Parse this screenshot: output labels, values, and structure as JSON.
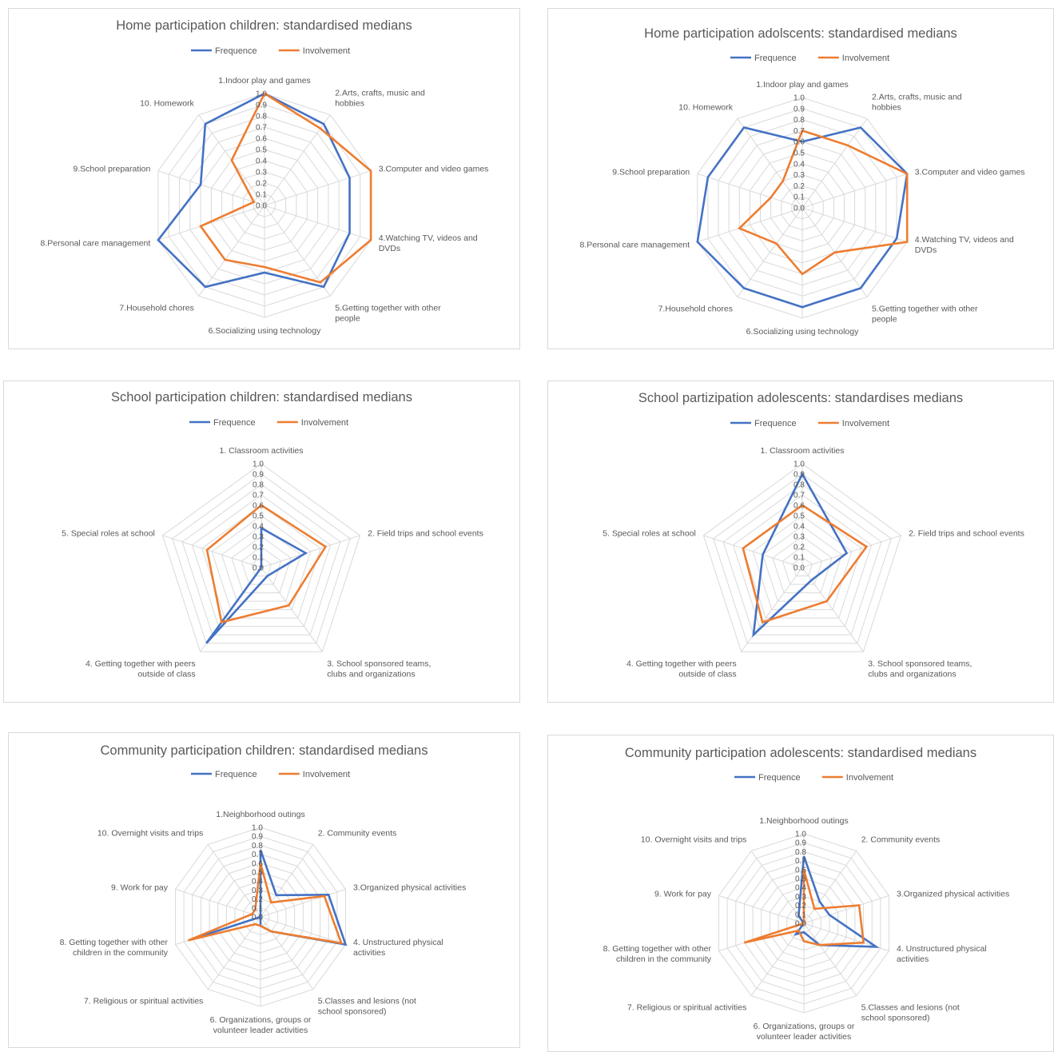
{
  "colors": {
    "frequence": "#4472C4",
    "involvement": "#ED7D31",
    "grid": "#d9d9d9",
    "text": "#595959"
  },
  "chart_data": [
    {
      "type": "radar",
      "title": "Home participation children: standardised medians",
      "legend": {
        "position": "top"
      },
      "rlim": [
        0,
        1
      ],
      "ticks": [
        "0.0",
        "0.1",
        "0.2",
        "0.3",
        "0.4",
        "0.5",
        "0.6",
        "0.7",
        "0.8",
        "0.9",
        "1.0"
      ],
      "categories": [
        [
          "1.Indoor play and games"
        ],
        [
          "2.Arts, crafts, music and",
          "hobbies"
        ],
        [
          "3.Computer and video games"
        ],
        [
          "4.Watching TV, videos and",
          "DVDs"
        ],
        [
          "5.Getting together with other",
          "people"
        ],
        [
          "6.Socializing using technology"
        ],
        [
          "7.Household chores"
        ],
        [
          "8.Personal care management"
        ],
        [
          "9.School preparation"
        ],
        [
          "10. Homework"
        ]
      ],
      "series": [
        {
          "name": "Frequence",
          "values": [
            1.0,
            0.9,
            0.8,
            0.8,
            0.9,
            0.6,
            0.9,
            1.0,
            0.6,
            0.9
          ]
        },
        {
          "name": "Involvement",
          "values": [
            1.0,
            0.85,
            1.0,
            1.0,
            0.85,
            0.55,
            0.6,
            0.6,
            0.1,
            0.5
          ]
        }
      ]
    },
    {
      "type": "radar",
      "title": "Home participation adolscents: standardised medians",
      "legend": {
        "position": "top"
      },
      "rlim": [
        0,
        1
      ],
      "ticks": [
        "0.0",
        "0.1",
        "0.2",
        "0.3",
        "0.4",
        "0.5",
        "0.6",
        "0.7",
        "0.8",
        "0.9",
        "1.0"
      ],
      "categories": [
        [
          "1.Indoor play and games"
        ],
        [
          "2.Arts, crafts, music and",
          "hobbies"
        ],
        [
          "3.Computer and video games"
        ],
        [
          "4.Watching TV, videos and",
          "DVDs"
        ],
        [
          "5.Getting together with other",
          "people"
        ],
        [
          "6.Socializing using technology"
        ],
        [
          "7.Household chores"
        ],
        [
          "8.Personal care management"
        ],
        [
          "9.School preparation"
        ],
        [
          "10. Homework"
        ]
      ],
      "series": [
        {
          "name": "Frequence",
          "values": [
            0.6,
            0.9,
            1.0,
            0.9,
            0.9,
            0.9,
            0.9,
            1.0,
            0.9,
            0.9
          ]
        },
        {
          "name": "Involvement",
          "values": [
            0.7,
            0.7,
            1.0,
            1.0,
            0.5,
            0.6,
            0.4,
            0.6,
            0.3,
            0.3
          ]
        }
      ]
    },
    {
      "type": "radar",
      "title": "School participation children: standardised medians",
      "legend": {
        "position": "top"
      },
      "rlim": [
        0,
        1
      ],
      "ticks": [
        "0.0",
        "0.1",
        "0.2",
        "0.3",
        "0.4",
        "0.5",
        "0.6",
        "0.7",
        "0.8",
        "0.9",
        "1.0"
      ],
      "categories": [
        [
          "1. Classroom activities"
        ],
        [
          "2. Field trips and school events"
        ],
        [
          "3. School sponsored teams,",
          "clubs and organizations"
        ],
        [
          "4. Getting together with peers",
          "outside of class"
        ],
        [
          "5. Special roles at school"
        ]
      ],
      "series": [
        {
          "name": "Frequence",
          "values": [
            0.38,
            0.45,
            0.1,
            0.9,
            0.0
          ]
        },
        {
          "name": "Involvement",
          "values": [
            0.6,
            0.65,
            0.45,
            0.65,
            0.55
          ]
        }
      ]
    },
    {
      "type": "radar",
      "title": "School partizipation adolescents: standardises medians",
      "legend": {
        "position": "top"
      },
      "rlim": [
        0,
        1
      ],
      "ticks": [
        "0.0",
        "0.1",
        "0.2",
        "0.3",
        "0.4",
        "0.5",
        "0.6",
        "0.7",
        "0.8",
        "0.9",
        "1.0"
      ],
      "categories": [
        [
          "1. Classroom activities"
        ],
        [
          "2. Field trips and school events"
        ],
        [
          "3. School sponsored teams,",
          "clubs and organizations"
        ],
        [
          "4. Getting together with peers",
          "outside of class"
        ],
        [
          "5. Special roles at school"
        ]
      ],
      "series": [
        {
          "name": "Frequence",
          "values": [
            0.9,
            0.45,
            0.15,
            0.8,
            0.4
          ]
        },
        {
          "name": "Involvement",
          "values": [
            0.6,
            0.65,
            0.4,
            0.65,
            0.6
          ]
        }
      ]
    },
    {
      "type": "radar",
      "title": "Community participation children: standardised medians",
      "legend": {
        "position": "top"
      },
      "rlim": [
        0,
        1
      ],
      "ticks": [
        "0.0",
        "0.1",
        "0.2",
        "0.3",
        "0.4",
        "0.5",
        "0.6",
        "0.7",
        "0.8",
        "0.9",
        "1.0"
      ],
      "categories": [
        [
          "1.Neighborhood outings"
        ],
        [
          "2. Community events"
        ],
        [
          "3.Organized physical activities"
        ],
        [
          "4. Unstructured physical",
          "activities"
        ],
        [
          "5.Classes and lesions (not",
          "school sponsored)"
        ],
        [
          "6. Organizations, groups or",
          "volunteer leader activities"
        ],
        [
          "7. Religious or spiritual activities"
        ],
        [
          "8. Getting together with other",
          "children in the community"
        ],
        [
          "9. Work for pay"
        ],
        [
          "10. Overnight visits and trips"
        ]
      ],
      "series": [
        {
          "name": "Frequence",
          "values": [
            0.75,
            0.3,
            0.8,
            1.0,
            0.2,
            0.1,
            0.0,
            0.8,
            0.0,
            0.0
          ]
        },
        {
          "name": "Involvement",
          "values": [
            0.6,
            0.2,
            0.75,
            0.95,
            0.2,
            0.1,
            0.1,
            0.85,
            0.1,
            0.1
          ]
        }
      ]
    },
    {
      "type": "radar",
      "title": "Community participation adolescents: standardised medians",
      "legend": {
        "position": "top"
      },
      "rlim": [
        0,
        1
      ],
      "ticks": [
        "0.0",
        "0.1",
        "0.2",
        "0.3",
        "0.4",
        "0.5",
        "0.6",
        "0.7",
        "0.8",
        "0.9",
        "1.0"
      ],
      "categories": [
        [
          "1.Neighborhood outings"
        ],
        [
          "2. Community events"
        ],
        [
          "3.Organized physical activities"
        ],
        [
          "4. Unstructured physical",
          "activities"
        ],
        [
          "5.Classes and lesions (not",
          "school sponsored)"
        ],
        [
          "6. Organizations, groups or",
          "volunteer leader activities"
        ],
        [
          "7. Religious or spiritual activities"
        ],
        [
          "8. Getting together with other",
          "children in the community"
        ],
        [
          "9. Work for pay"
        ],
        [
          "10. Overnight visits and trips"
        ]
      ],
      "series": [
        {
          "name": "Frequence",
          "values": [
            0.75,
            0.3,
            0.3,
            0.85,
            0.3,
            0.1,
            0.15,
            0.0,
            0.0,
            0.1
          ]
        },
        {
          "name": "Involvement",
          "values": [
            0.6,
            0.2,
            0.65,
            0.7,
            0.3,
            0.2,
            0.1,
            0.7,
            0.0,
            0.0
          ]
        }
      ]
    }
  ]
}
